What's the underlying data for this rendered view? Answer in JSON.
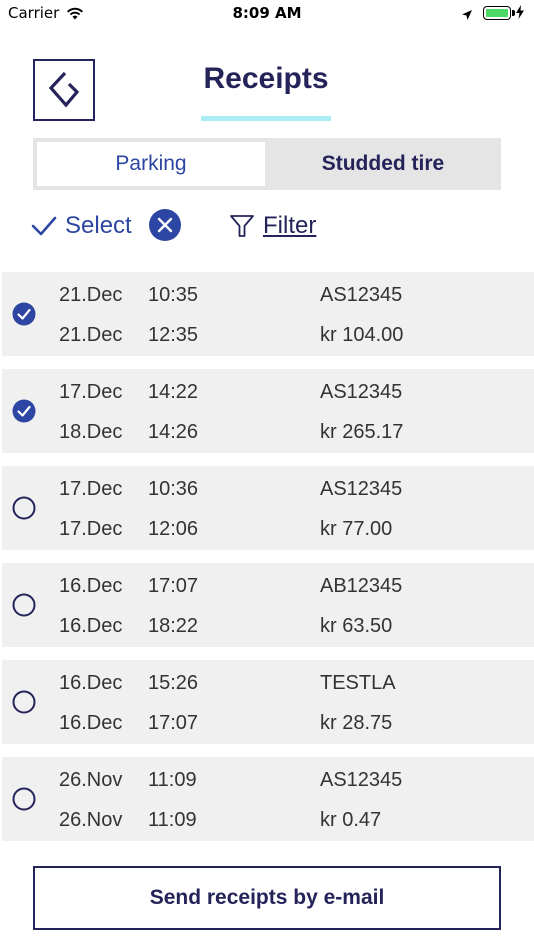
{
  "status_bar": {
    "carrier": "Carrier",
    "time": "8:09 AM"
  },
  "header": {
    "title": "Receipts"
  },
  "tabs": {
    "left": "Parking",
    "right": "Studded tire",
    "selected": "Parking"
  },
  "toolbar": {
    "select_label": "Select",
    "filter_label": "Filter"
  },
  "receipts": [
    {
      "checked": true,
      "start_date": "21.Dec",
      "start_time": "10:35",
      "plate": "AS12345",
      "end_date": "21.Dec",
      "end_time": "12:35",
      "amount": "kr 104.00"
    },
    {
      "checked": true,
      "start_date": "17.Dec",
      "start_time": "14:22",
      "plate": "AS12345",
      "end_date": "18.Dec",
      "end_time": "14:26",
      "amount": "kr 265.17"
    },
    {
      "checked": false,
      "start_date": "17.Dec",
      "start_time": "10:36",
      "plate": "AS12345",
      "end_date": "17.Dec",
      "end_time": "12:06",
      "amount": "kr 77.00"
    },
    {
      "checked": false,
      "start_date": "16.Dec",
      "start_time": "17:07",
      "plate": "AB12345",
      "end_date": "16.Dec",
      "end_time": "18:22",
      "amount": "kr 63.50"
    },
    {
      "checked": false,
      "start_date": "16.Dec",
      "start_time": "15:26",
      "plate": "TESTLA",
      "end_date": "16.Dec",
      "end_time": "17:07",
      "amount": "kr 28.75"
    },
    {
      "checked": false,
      "start_date": "26.Nov",
      "start_time": "11:09",
      "plate": "AS12345",
      "end_date": "26.Nov",
      "end_time": "11:09",
      "amount": "kr 0.47"
    }
  ],
  "footer": {
    "send_label": "Send receipts by e-mail"
  },
  "colors": {
    "navy": "#24245a",
    "accent_blue": "#2d45a3",
    "underline": "#a9eef5",
    "row_bg": "#f0f0f0",
    "battery": "#4cd964"
  }
}
